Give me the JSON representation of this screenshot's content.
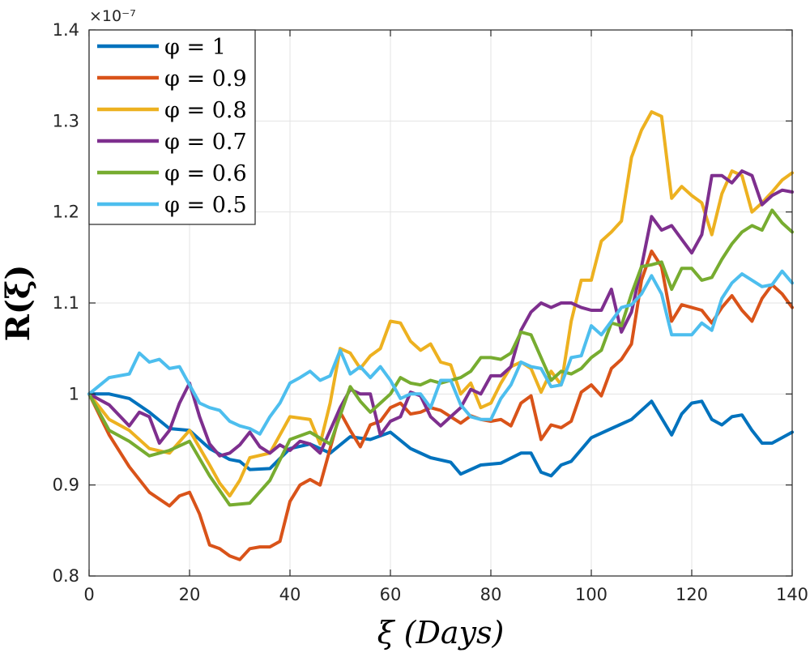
{
  "chart_data": {
    "type": "line",
    "title": "",
    "xlabel": "ξ (Days)",
    "ylabel": "R(ξ)",
    "exponent_label": "×10⁻⁷",
    "xlim": [
      0,
      140
    ],
    "ylim": [
      0.8,
      1.4
    ],
    "xticks": [
      0,
      20,
      40,
      60,
      80,
      100,
      120,
      140
    ],
    "yticks": [
      0.8,
      0.9,
      1,
      1.1,
      1.2,
      1.3,
      1.4
    ],
    "ytick_labels": [
      "0.8",
      "0.9",
      "1",
      "1.1",
      "1.2",
      "1.3",
      "1.4"
    ],
    "grid": true,
    "legend_position": "top-left",
    "series": [
      {
        "name": "φ = 1",
        "color": "#0072BD",
        "x": [
          0,
          4,
          8,
          12,
          16,
          20,
          24,
          28,
          30,
          32,
          36,
          40,
          44,
          48,
          52,
          56,
          60,
          64,
          68,
          72,
          74,
          78,
          82,
          86,
          88,
          90,
          92,
          94,
          96,
          100,
          104,
          108,
          112,
          116,
          118,
          120,
          122,
          124,
          126,
          128,
          130,
          132,
          134,
          136,
          138,
          140
        ],
        "y": [
          1.0,
          1.0,
          0.995,
          0.98,
          0.962,
          0.96,
          0.94,
          0.928,
          0.926,
          0.917,
          0.918,
          0.94,
          0.945,
          0.935,
          0.953,
          0.95,
          0.958,
          0.94,
          0.93,
          0.925,
          0.912,
          0.922,
          0.924,
          0.935,
          0.935,
          0.914,
          0.91,
          0.922,
          0.926,
          0.952,
          0.962,
          0.972,
          0.992,
          0.955,
          0.978,
          0.99,
          0.992,
          0.972,
          0.966,
          0.975,
          0.977,
          0.96,
          0.946,
          0.946,
          0.952,
          0.958
        ]
      },
      {
        "name": "φ = 0.9",
        "color": "#D95319",
        "x": [
          0,
          4,
          8,
          12,
          16,
          18,
          20,
          22,
          24,
          26,
          28,
          30,
          32,
          34,
          36,
          38,
          40,
          42,
          44,
          46,
          48,
          50,
          52,
          54,
          56,
          58,
          60,
          62,
          64,
          66,
          68,
          70,
          72,
          74,
          76,
          78,
          80,
          82,
          84,
          86,
          88,
          90,
          92,
          94,
          96,
          98,
          100,
          102,
          104,
          106,
          108,
          110,
          112,
          114,
          116,
          118,
          120,
          122,
          124,
          126,
          128,
          130,
          132,
          134,
          136,
          138,
          140
        ],
        "y": [
          1.0,
          0.955,
          0.92,
          0.892,
          0.877,
          0.888,
          0.892,
          0.868,
          0.834,
          0.83,
          0.822,
          0.818,
          0.83,
          0.832,
          0.832,
          0.838,
          0.882,
          0.9,
          0.906,
          0.9,
          0.94,
          0.98,
          0.96,
          0.942,
          0.966,
          0.97,
          0.985,
          0.99,
          0.978,
          0.98,
          0.985,
          0.982,
          0.975,
          0.968,
          0.976,
          0.972,
          0.97,
          0.972,
          0.965,
          0.99,
          0.998,
          0.95,
          0.966,
          0.963,
          0.97,
          1.002,
          1.01,
          0.998,
          1.028,
          1.038,
          1.055,
          1.125,
          1.157,
          1.14,
          1.08,
          1.098,
          1.095,
          1.092,
          1.078,
          1.095,
          1.108,
          1.092,
          1.08,
          1.105,
          1.12,
          1.11,
          1.095
        ]
      },
      {
        "name": "φ = 0.8",
        "color": "#EDB120",
        "x": [
          0,
          4,
          8,
          12,
          16,
          20,
          24,
          26,
          28,
          30,
          32,
          36,
          40,
          44,
          46,
          48,
          50,
          52,
          54,
          56,
          58,
          60,
          62,
          64,
          66,
          68,
          70,
          72,
          74,
          76,
          78,
          80,
          82,
          84,
          86,
          88,
          90,
          92,
          94,
          96,
          98,
          100,
          102,
          104,
          106,
          108,
          110,
          112,
          114,
          116,
          118,
          120,
          122,
          124,
          126,
          128,
          130,
          132,
          134,
          136,
          138,
          140
        ],
        "y": [
          1.0,
          0.972,
          0.96,
          0.94,
          0.935,
          0.96,
          0.922,
          0.902,
          0.888,
          0.905,
          0.93,
          0.935,
          0.975,
          0.972,
          0.945,
          0.99,
          1.05,
          1.045,
          1.028,
          1.042,
          1.05,
          1.08,
          1.078,
          1.058,
          1.048,
          1.055,
          1.035,
          1.032,
          1.0,
          1.012,
          0.985,
          0.99,
          1.012,
          1.03,
          1.035,
          1.028,
          1.002,
          1.025,
          1.01,
          1.08,
          1.125,
          1.125,
          1.168,
          1.178,
          1.19,
          1.26,
          1.29,
          1.31,
          1.305,
          1.215,
          1.228,
          1.218,
          1.21,
          1.175,
          1.22,
          1.245,
          1.24,
          1.2,
          1.21,
          1.222,
          1.235,
          1.243
        ]
      },
      {
        "name": "φ = 0.7",
        "color": "#7E2F8E",
        "x": [
          0,
          4,
          8,
          10,
          12,
          14,
          16,
          18,
          20,
          22,
          24,
          26,
          28,
          30,
          32,
          34,
          36,
          38,
          40,
          42,
          44,
          46,
          48,
          50,
          52,
          54,
          56,
          58,
          60,
          62,
          64,
          66,
          68,
          70,
          72,
          74,
          76,
          78,
          80,
          82,
          84,
          86,
          88,
          90,
          92,
          94,
          96,
          98,
          100,
          102,
          104,
          106,
          108,
          110,
          112,
          114,
          116,
          118,
          120,
          122,
          124,
          126,
          128,
          130,
          132,
          134,
          136,
          138,
          140
        ],
        "y": [
          1.0,
          0.988,
          0.965,
          0.98,
          0.975,
          0.946,
          0.96,
          0.99,
          1.012,
          0.975,
          0.945,
          0.932,
          0.935,
          0.944,
          0.958,
          0.942,
          0.935,
          0.944,
          0.938,
          0.948,
          0.945,
          0.935,
          0.96,
          0.985,
          1.005,
          1.0,
          1.0,
          0.955,
          0.97,
          0.975,
          1.002,
          0.998,
          0.975,
          0.965,
          0.975,
          0.985,
          1.005,
          1.0,
          1.02,
          1.02,
          1.03,
          1.07,
          1.09,
          1.1,
          1.095,
          1.1,
          1.1,
          1.095,
          1.092,
          1.092,
          1.115,
          1.068,
          1.09,
          1.14,
          1.195,
          1.18,
          1.185,
          1.17,
          1.155,
          1.175,
          1.24,
          1.24,
          1.232,
          1.245,
          1.24,
          1.208,
          1.218,
          1.224,
          1.222
        ]
      },
      {
        "name": "φ = 0.6",
        "color": "#77AC30",
        "x": [
          0,
          4,
          8,
          12,
          16,
          20,
          24,
          28,
          32,
          36,
          40,
          44,
          48,
          52,
          54,
          56,
          58,
          60,
          62,
          64,
          66,
          68,
          70,
          72,
          74,
          76,
          78,
          80,
          82,
          84,
          86,
          88,
          90,
          92,
          94,
          96,
          98,
          100,
          102,
          104,
          106,
          108,
          110,
          112,
          114,
          116,
          118,
          120,
          122,
          124,
          126,
          128,
          130,
          132,
          134,
          136,
          138,
          140
        ],
        "y": [
          1.0,
          0.96,
          0.948,
          0.932,
          0.938,
          0.948,
          0.91,
          0.878,
          0.88,
          0.905,
          0.95,
          0.958,
          0.945,
          1.008,
          0.992,
          0.98,
          0.99,
          1.0,
          1.018,
          1.012,
          1.01,
          1.015,
          1.012,
          1.015,
          1.018,
          1.025,
          1.04,
          1.04,
          1.038,
          1.045,
          1.068,
          1.065,
          1.04,
          1.015,
          1.025,
          1.022,
          1.028,
          1.04,
          1.048,
          1.078,
          1.075,
          1.11,
          1.14,
          1.142,
          1.145,
          1.115,
          1.138,
          1.138,
          1.125,
          1.128,
          1.148,
          1.165,
          1.178,
          1.185,
          1.18,
          1.202,
          1.188,
          1.178
        ]
      },
      {
        "name": "φ = 0.5",
        "color": "#4DBEEE",
        "x": [
          0,
          4,
          8,
          10,
          12,
          14,
          16,
          18,
          20,
          22,
          24,
          26,
          28,
          30,
          32,
          34,
          36,
          38,
          40,
          42,
          44,
          46,
          48,
          50,
          52,
          54,
          56,
          58,
          60,
          62,
          64,
          66,
          68,
          70,
          72,
          74,
          76,
          78,
          80,
          82,
          84,
          86,
          88,
          90,
          92,
          94,
          96,
          98,
          100,
          102,
          104,
          106,
          108,
          110,
          112,
          114,
          116,
          118,
          120,
          122,
          124,
          126,
          128,
          130,
          132,
          134,
          136,
          138,
          140
        ],
        "y": [
          1.0,
          1.018,
          1.022,
          1.045,
          1.035,
          1.038,
          1.028,
          1.03,
          1.01,
          0.99,
          0.985,
          0.982,
          0.97,
          0.965,
          0.962,
          0.956,
          0.975,
          0.99,
          1.012,
          1.018,
          1.025,
          1.015,
          1.02,
          1.048,
          1.022,
          1.03,
          1.018,
          1.03,
          1.015,
          0.995,
          1.0,
          1.0,
          0.985,
          1.015,
          1.015,
          0.988,
          0.975,
          0.972,
          0.972,
          0.995,
          1.01,
          1.035,
          1.03,
          1.028,
          1.008,
          1.01,
          1.04,
          1.042,
          1.075,
          1.065,
          1.08,
          1.095,
          1.098,
          1.11,
          1.13,
          1.11,
          1.065,
          1.065,
          1.065,
          1.078,
          1.07,
          1.105,
          1.122,
          1.132,
          1.125,
          1.118,
          1.12,
          1.135,
          1.122
        ]
      }
    ]
  }
}
